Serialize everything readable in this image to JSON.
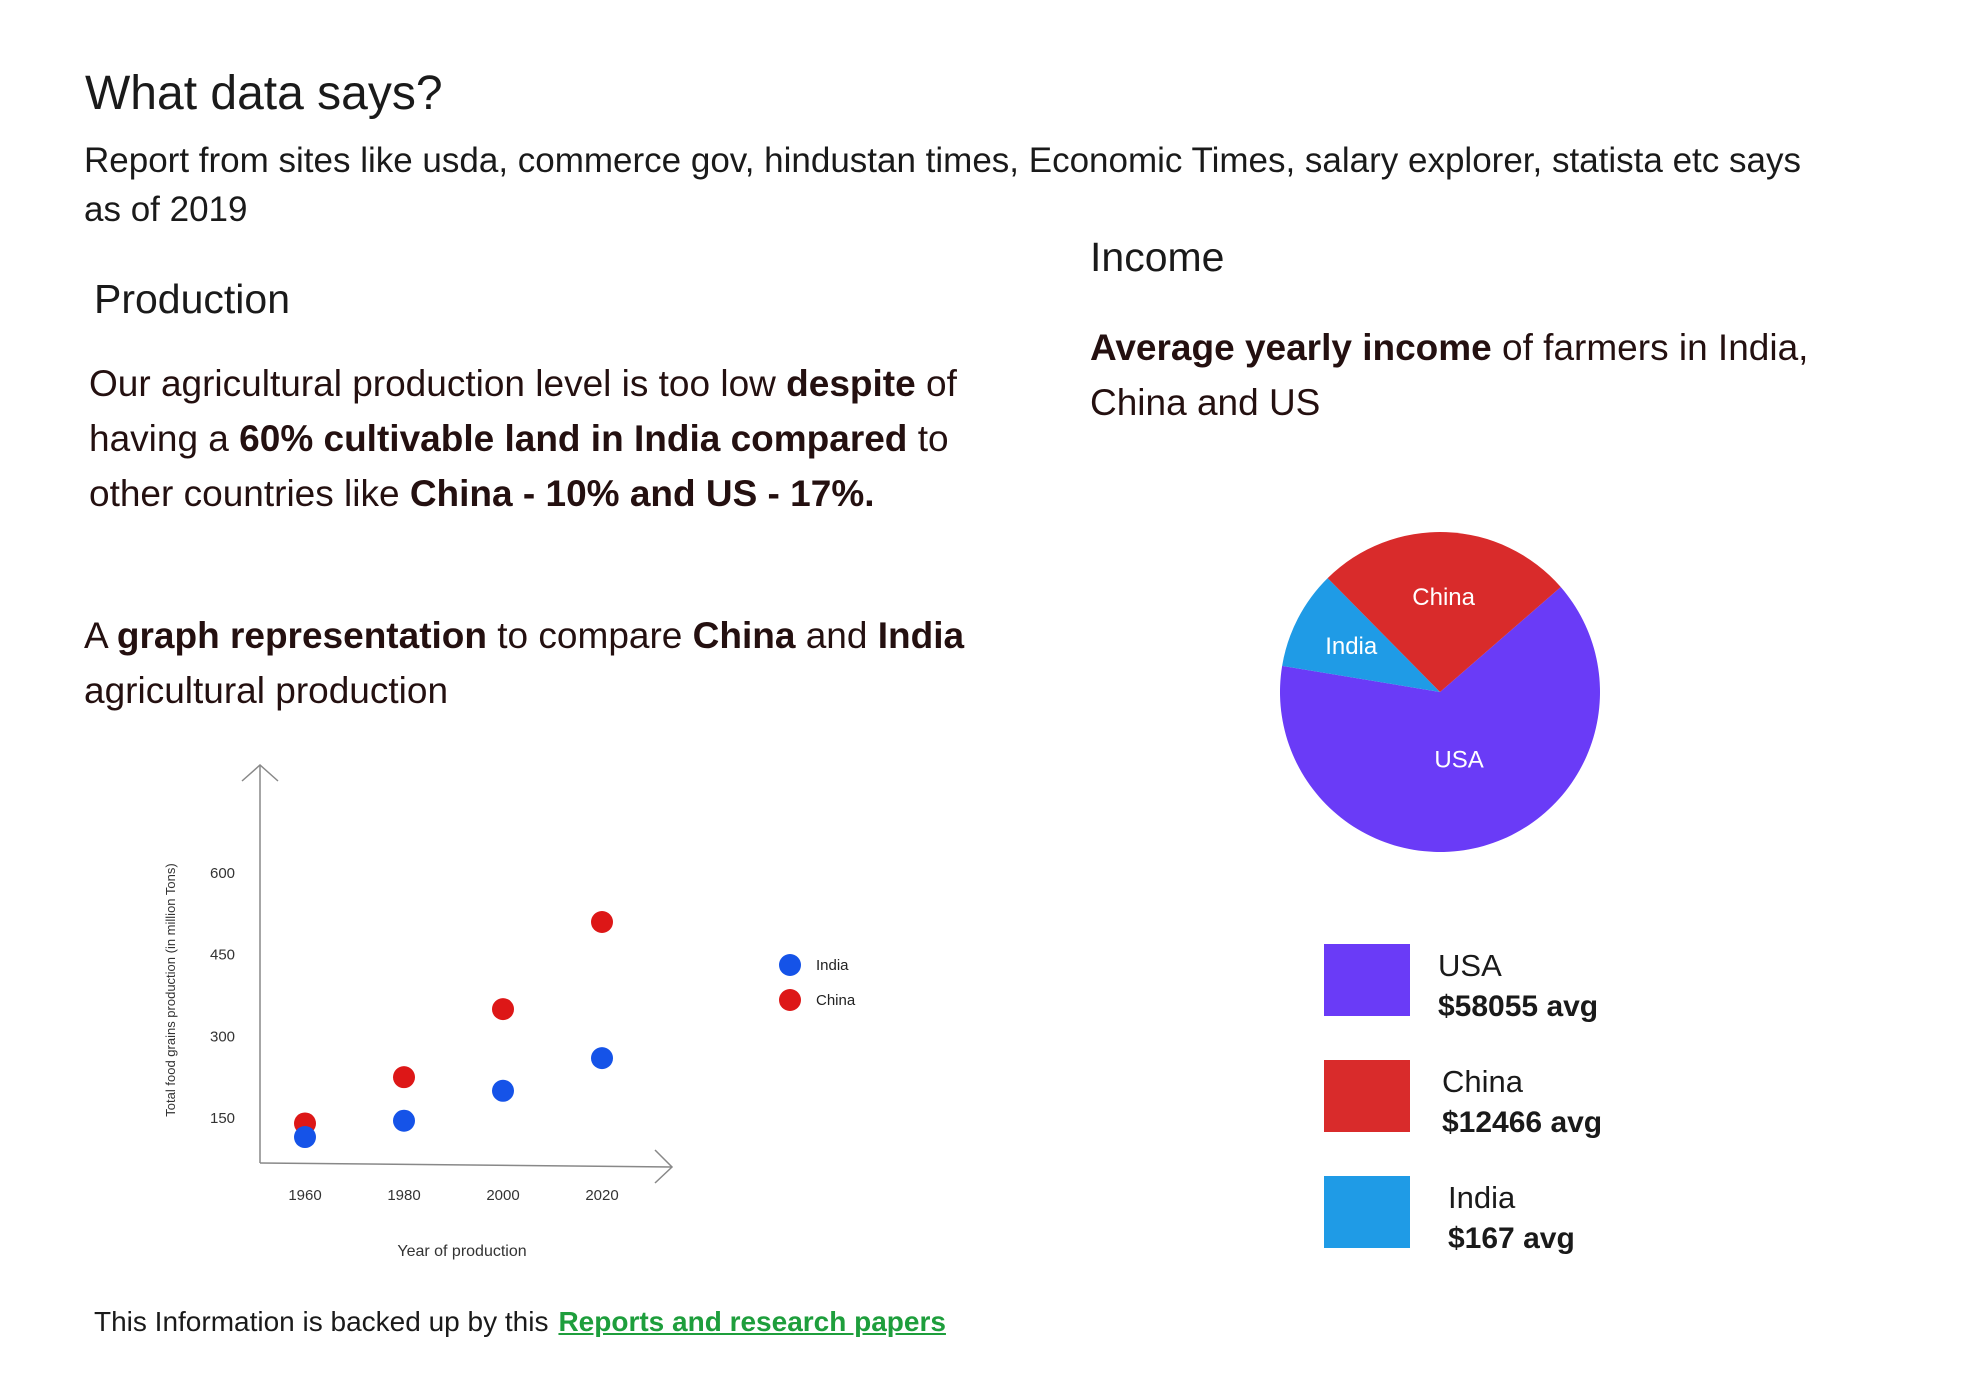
{
  "page": {
    "title": "What data says?",
    "intro": "Report from  sites like usda, commerce gov, hindustan times, Economic Times, salary explorer, statista etc says as of 2019"
  },
  "production": {
    "heading": "Production",
    "text": {
      "p1": "Our agricultural production level is too low ",
      "b1": "despite",
      "p2": " of having a ",
      "b2": "60% cultivable land in India compared",
      "p3": " to other countries like ",
      "b3": "China - 10% and US - 17%."
    },
    "caption": {
      "p1": "A ",
      "b1": "graph representation",
      "p2": " to compare ",
      "b2": "China",
      "p3": " and ",
      "b3": "India",
      "p4": " agricultural production"
    }
  },
  "income": {
    "heading": "Income",
    "text": {
      "b1": "Average yearly income",
      "p1": " of farmers in India, China and US"
    },
    "legend": [
      {
        "name": "USA",
        "value": "$58055 avg",
        "color": "#6a3bf7"
      },
      {
        "name": "China",
        "value": "$12466 avg",
        "color": "#d92b2b"
      },
      {
        "name": "India",
        "value": "$167 avg",
        "color": "#1f9be6"
      }
    ]
  },
  "footer": {
    "text": "This Information is backed up by this",
    "link": "Reports and research papers"
  },
  "chart_data": [
    {
      "type": "scatter",
      "xlabel": "Year of production",
      "ylabel": "Total food grains production  (in million Tons)",
      "x_ticks": [
        1960,
        1980,
        2000,
        2020
      ],
      "y_ticks": [
        150,
        300,
        450,
        600
      ],
      "series": [
        {
          "name": "India",
          "color": "#1553e8",
          "x": [
            1960,
            1980,
            2000,
            2020
          ],
          "y": [
            115,
            145,
            200,
            260
          ]
        },
        {
          "name": "China",
          "color": "#dd1717",
          "x": [
            1960,
            1980,
            2000,
            2020
          ],
          "y": [
            140,
            225,
            350,
            510
          ]
        }
      ],
      "legend_position": "right"
    },
    {
      "type": "pie",
      "slices": [
        {
          "label": "USA",
          "value": 64,
          "color": "#6a3bf7"
        },
        {
          "label": "India",
          "value": 10,
          "color": "#1f9be6"
        },
        {
          "label": "China",
          "value": 26,
          "color": "#d92b2b"
        }
      ]
    }
  ]
}
